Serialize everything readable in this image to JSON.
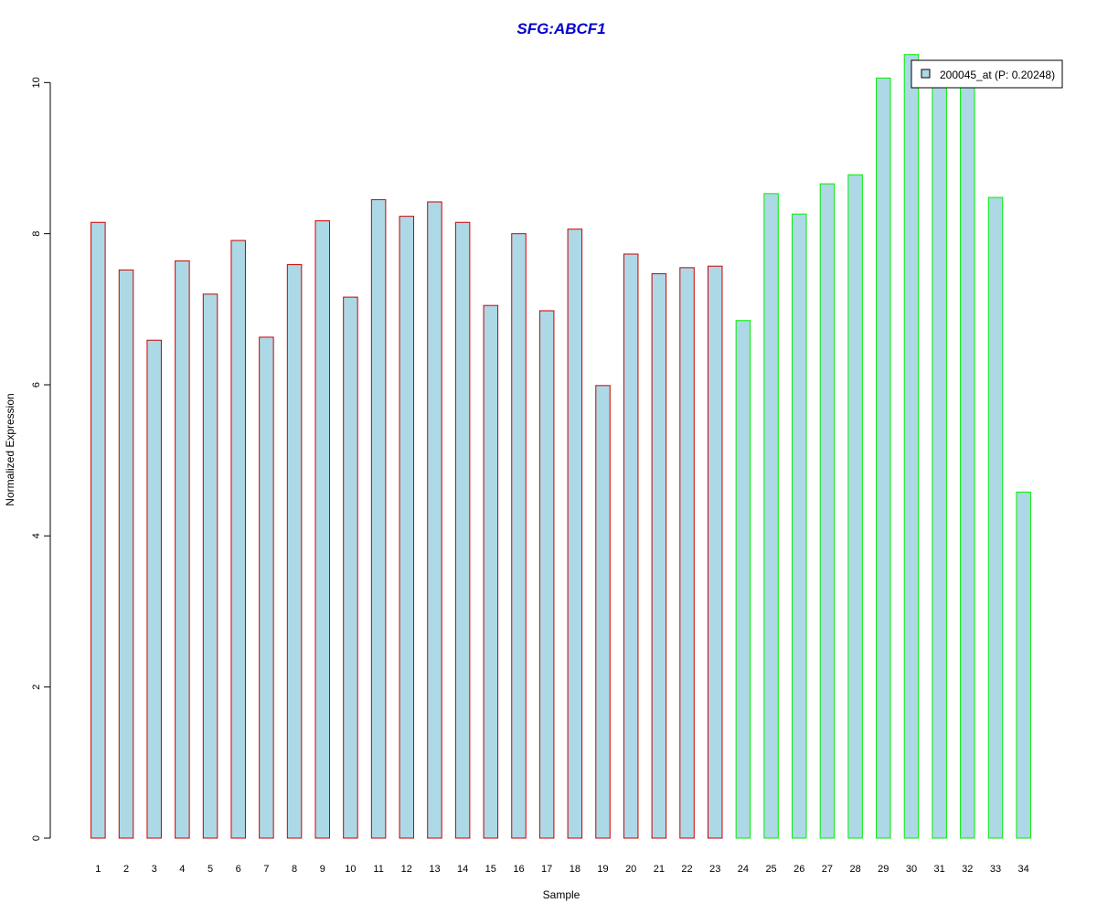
{
  "chart_data": {
    "type": "bar",
    "title": "SFG:ABCF1",
    "xlabel": "Sample",
    "ylabel": "Normalized Expression",
    "ylim": [
      0,
      10.5
    ],
    "yticks": [
      0,
      2,
      4,
      6,
      8,
      10
    ],
    "grid": false,
    "legend_position": "top-right",
    "categories": [
      "1",
      "2",
      "3",
      "4",
      "5",
      "6",
      "7",
      "8",
      "9",
      "10",
      "11",
      "12",
      "13",
      "14",
      "15",
      "16",
      "17",
      "18",
      "19",
      "20",
      "21",
      "22",
      "23",
      "24",
      "25",
      "26",
      "27",
      "28",
      "29",
      "30",
      "31",
      "32",
      "33",
      "34"
    ],
    "series": [
      {
        "name": "200045_at (P: 0.20248)",
        "fill_color": "#add8e6",
        "values": [
          8.15,
          7.52,
          6.59,
          7.64,
          7.2,
          7.91,
          6.63,
          7.59,
          8.17,
          7.16,
          8.45,
          8.23,
          8.42,
          8.15,
          7.05,
          8.0,
          6.98,
          8.06,
          5.99,
          7.73,
          7.47,
          7.55,
          7.57,
          6.85,
          8.53,
          8.26,
          8.66,
          8.78,
          10.06,
          10.37,
          9.95,
          9.95,
          8.48,
          4.58
        ]
      }
    ],
    "bar_border_colors": [
      "#cc0000",
      "#cc0000",
      "#cc0000",
      "#cc0000",
      "#cc0000",
      "#cc0000",
      "#cc0000",
      "#cc0000",
      "#cc0000",
      "#cc0000",
      "#cc0000",
      "#cc0000",
      "#cc0000",
      "#cc0000",
      "#cc0000",
      "#cc0000",
      "#cc0000",
      "#cc0000",
      "#cc0000",
      "#cc0000",
      "#cc0000",
      "#cc0000",
      "#cc0000",
      "#00ee00",
      "#00ee00",
      "#00ee00",
      "#00ee00",
      "#00ee00",
      "#00ee00",
      "#00ee00",
      "#00ee00",
      "#00ee00",
      "#00ee00",
      "#00ee00"
    ]
  }
}
